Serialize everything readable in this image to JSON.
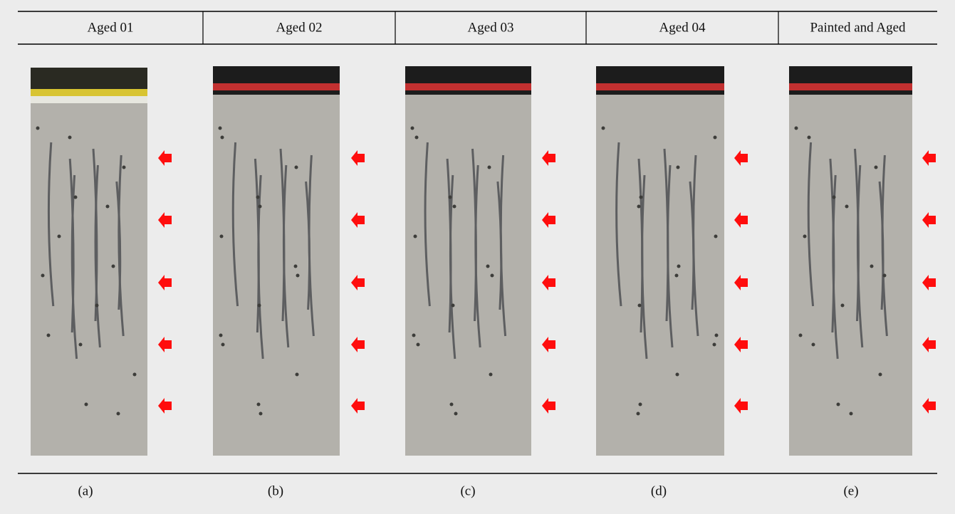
{
  "header": [
    "Aged 01",
    "Aged 02",
    "Aged 03",
    "Aged 04",
    "Painted and Aged"
  ],
  "captions": [
    "(a)",
    "(b)",
    "(c)",
    "(d)",
    "(e)"
  ]
}
